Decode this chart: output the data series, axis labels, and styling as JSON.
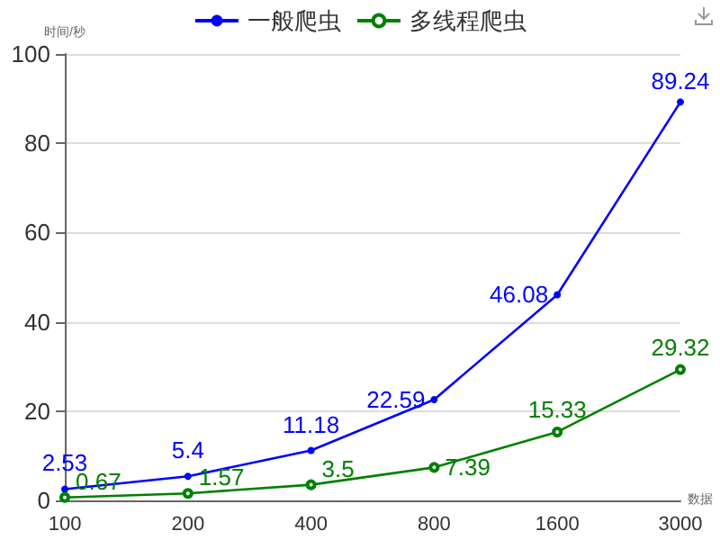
{
  "chart_data": {
    "type": "line",
    "ylabel": "时间/秒",
    "xlabel": "数据",
    "categories": [
      "100",
      "200",
      "400",
      "800",
      "1600",
      "3000"
    ],
    "series": [
      {
        "name": "一般爬虫",
        "color": "#0000ff",
        "values": [
          2.53,
          5.4,
          11.18,
          22.59,
          46.08,
          89.24
        ],
        "marker": "circle"
      },
      {
        "name": "多线程爬虫",
        "color": "#008000",
        "values": [
          0.67,
          1.57,
          3.5,
          7.39,
          15.33,
          29.32
        ],
        "marker": "emptyCircle"
      }
    ],
    "ylim": [
      0,
      100
    ],
    "yticks": [
      0,
      20,
      40,
      60,
      80,
      100
    ],
    "grid": "y",
    "legend": "top",
    "data_labels": true
  }
}
